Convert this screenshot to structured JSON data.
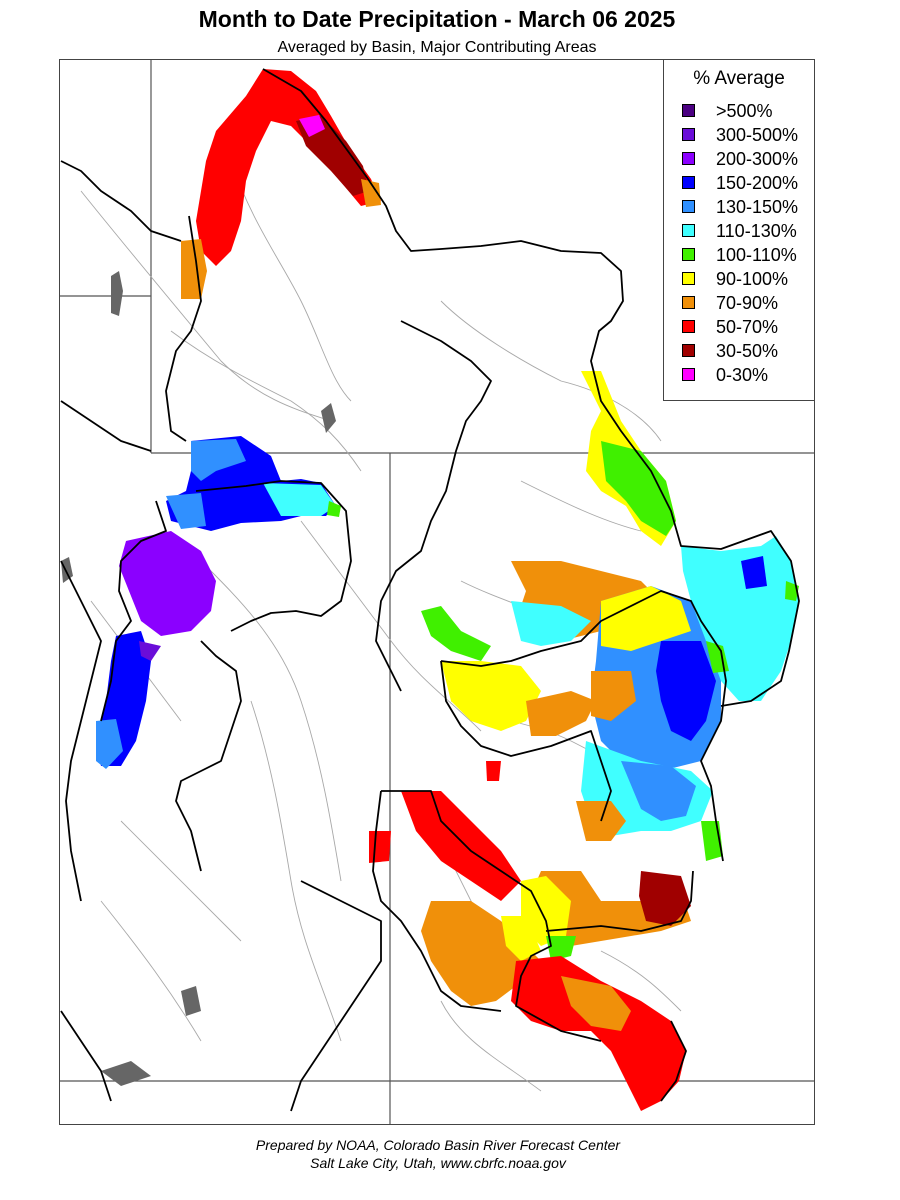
{
  "title": "Month to Date Precipitation - March 06 2025",
  "subtitle": "Averaged by Basin, Major Contributing Areas",
  "legend": {
    "title": "% Average",
    "items": [
      {
        "label": ">500%",
        "color": "#4b0082"
      },
      {
        "label": "300-500%",
        "color": "#6a0dd8"
      },
      {
        "label": "200-300%",
        "color": "#8b00ff"
      },
      {
        "label": "150-200%",
        "color": "#0000ff"
      },
      {
        "label": "130-150%",
        "color": "#3090ff"
      },
      {
        "label": "110-130%",
        "color": "#40ffff"
      },
      {
        "label": "100-110%",
        "color": "#40f000"
      },
      {
        "label": "90-100%",
        "color": "#ffff00"
      },
      {
        "label": "70-90%",
        "color": "#f0900a"
      },
      {
        "label": "50-70%",
        "color": "#ff0000"
      },
      {
        "label": "30-50%",
        "color": "#a00000"
      },
      {
        "label": "0-30%",
        "color": "#ff00ff"
      }
    ]
  },
  "footer": {
    "line1": "Prepared by NOAA, Colorado Basin River Forecast Center",
    "line2": "Salt Lake City, Utah, www.cbrfc.noaa.gov"
  },
  "colors": {
    "water": "#666666",
    "basin_outline": "#000000",
    "state_line": "#555555",
    "river": "#a8a8a8"
  }
}
